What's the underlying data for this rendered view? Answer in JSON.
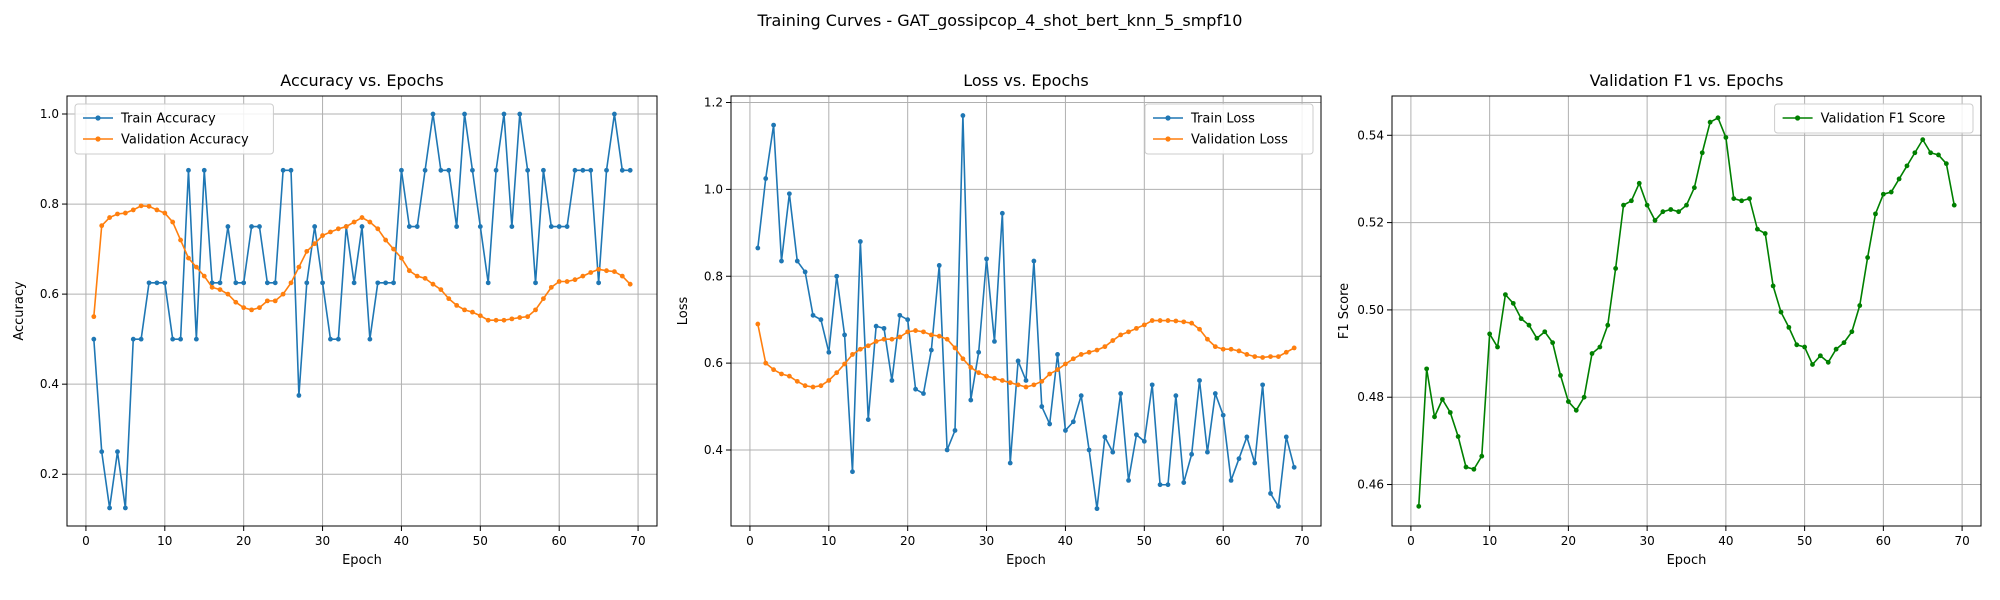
{
  "figure": {
    "suptitle": "Training Curves - GAT_gossipcop_4_shot_bert_knn_5_smpf10"
  },
  "chart_data": [
    {
      "type": "line",
      "title": "Accuracy vs. Epochs",
      "xlabel": "Epoch",
      "ylabel": "Accuracy",
      "xlim": [
        -2.4,
        72.4
      ],
      "ylim": [
        0.085,
        1.04
      ],
      "xticks": [
        0,
        10,
        20,
        30,
        40,
        50,
        60,
        70
      ],
      "yticks": [
        0.2,
        0.4,
        0.6,
        0.8,
        1.0
      ],
      "ytick_format": 1,
      "grid": true,
      "legend": "upper-left",
      "series": [
        {
          "name": "Train Accuracy",
          "color": "#1f77b4",
          "x": [
            1,
            2,
            3,
            4,
            5,
            6,
            7,
            8,
            9,
            10,
            11,
            12,
            13,
            14,
            15,
            16,
            17,
            18,
            19,
            20,
            21,
            22,
            23,
            24,
            25,
            26,
            27,
            28,
            29,
            30,
            31,
            32,
            33,
            34,
            35,
            36,
            37,
            38,
            39,
            40,
            41,
            42,
            43,
            44,
            45,
            46,
            47,
            48,
            49,
            50,
            51,
            52,
            53,
            54,
            55,
            56,
            57,
            58,
            59,
            60,
            61,
            62,
            63,
            64,
            65,
            66,
            67,
            68,
            69
          ],
          "values": [
            0.5,
            0.25,
            0.125,
            0.25,
            0.125,
            0.5,
            0.5,
            0.625,
            0.625,
            0.625,
            0.5,
            0.5,
            0.875,
            0.5,
            0.875,
            0.625,
            0.625,
            0.75,
            0.625,
            0.625,
            0.75,
            0.75,
            0.625,
            0.625,
            0.875,
            0.875,
            0.375,
            0.625,
            0.75,
            0.625,
            0.5,
            0.5,
            0.75,
            0.625,
            0.75,
            0.5,
            0.625,
            0.625,
            0.625,
            0.875,
            0.75,
            0.75,
            0.875,
            1.0,
            0.875,
            0.875,
            0.75,
            1.0,
            0.875,
            0.75,
            0.625,
            0.875,
            1.0,
            0.75,
            1.0,
            0.875,
            0.625,
            0.875,
            0.75,
            0.75,
            0.75,
            0.875,
            0.875,
            0.875,
            0.625,
            0.875,
            1.0,
            0.875,
            0.875
          ]
        },
        {
          "name": "Validation Accuracy",
          "color": "#ff7f0e",
          "x": [
            1,
            2,
            3,
            4,
            5,
            6,
            7,
            8,
            9,
            10,
            11,
            12,
            13,
            14,
            15,
            16,
            17,
            18,
            19,
            20,
            21,
            22,
            23,
            24,
            25,
            26,
            27,
            28,
            29,
            30,
            31,
            32,
            33,
            34,
            35,
            36,
            37,
            38,
            39,
            40,
            41,
            42,
            43,
            44,
            45,
            46,
            47,
            48,
            49,
            50,
            51,
            52,
            53,
            54,
            55,
            56,
            57,
            58,
            59,
            60,
            61,
            62,
            63,
            64,
            65,
            66,
            67,
            68,
            69
          ],
          "values": [
            0.55,
            0.752,
            0.77,
            0.778,
            0.78,
            0.787,
            0.796,
            0.795,
            0.787,
            0.78,
            0.76,
            0.72,
            0.68,
            0.66,
            0.64,
            0.615,
            0.61,
            0.6,
            0.582,
            0.57,
            0.565,
            0.57,
            0.585,
            0.585,
            0.6,
            0.625,
            0.66,
            0.695,
            0.712,
            0.73,
            0.738,
            0.745,
            0.75,
            0.76,
            0.77,
            0.76,
            0.745,
            0.72,
            0.7,
            0.68,
            0.652,
            0.64,
            0.635,
            0.622,
            0.61,
            0.59,
            0.575,
            0.565,
            0.56,
            0.552,
            0.542,
            0.542,
            0.542,
            0.545,
            0.548,
            0.55,
            0.565,
            0.59,
            0.615,
            0.628,
            0.628,
            0.632,
            0.64,
            0.648,
            0.655,
            0.652,
            0.65,
            0.64,
            0.622
          ]
        }
      ]
    },
    {
      "type": "line",
      "title": "Loss vs. Epochs",
      "xlabel": "Epoch",
      "ylabel": "Loss",
      "xlim": [
        -2.4,
        72.4
      ],
      "ylim": [
        0.225,
        1.215
      ],
      "xticks": [
        0,
        10,
        20,
        30,
        40,
        50,
        60,
        70
      ],
      "yticks": [
        0.4,
        0.6,
        0.8,
        1.0,
        1.2
      ],
      "ytick_format": 1,
      "grid": true,
      "legend": "upper-right",
      "series": [
        {
          "name": "Train Loss",
          "color": "#1f77b4",
          "x": [
            1,
            2,
            3,
            4,
            5,
            6,
            7,
            8,
            9,
            10,
            11,
            12,
            13,
            14,
            15,
            16,
            17,
            18,
            19,
            20,
            21,
            22,
            23,
            24,
            25,
            26,
            27,
            28,
            29,
            30,
            31,
            32,
            33,
            34,
            35,
            36,
            37,
            38,
            39,
            40,
            41,
            42,
            43,
            44,
            45,
            46,
            47,
            48,
            49,
            50,
            51,
            52,
            53,
            54,
            55,
            56,
            57,
            58,
            59,
            60,
            61,
            62,
            63,
            64,
            65,
            66,
            67,
            68,
            69
          ],
          "values": [
            0.865,
            1.025,
            1.148,
            0.835,
            0.99,
            0.835,
            0.81,
            0.71,
            0.7,
            0.625,
            0.8,
            0.665,
            0.35,
            0.88,
            0.47,
            0.685,
            0.68,
            0.56,
            0.71,
            0.7,
            0.54,
            0.53,
            0.63,
            0.825,
            0.4,
            0.445,
            1.17,
            0.515,
            0.625,
            0.84,
            0.65,
            0.945,
            0.37,
            0.605,
            0.56,
            0.835,
            0.5,
            0.46,
            0.62,
            0.445,
            0.465,
            0.525,
            0.4,
            0.265,
            0.43,
            0.395,
            0.53,
            0.33,
            0.435,
            0.42,
            0.55,
            0.32,
            0.32,
            0.525,
            0.325,
            0.39,
            0.56,
            0.395,
            0.53,
            0.48,
            0.33,
            0.38,
            0.43,
            0.37,
            0.55,
            0.3,
            0.27,
            0.43,
            0.36
          ]
        },
        {
          "name": "Validation Loss",
          "color": "#ff7f0e",
          "x": [
            1,
            2,
            3,
            4,
            5,
            6,
            7,
            8,
            9,
            10,
            11,
            12,
            13,
            14,
            15,
            16,
            17,
            18,
            19,
            20,
            21,
            22,
            23,
            24,
            25,
            26,
            27,
            28,
            29,
            30,
            31,
            32,
            33,
            34,
            35,
            36,
            37,
            38,
            39,
            40,
            41,
            42,
            43,
            44,
            45,
            46,
            47,
            48,
            49,
            50,
            51,
            52,
            53,
            54,
            55,
            56,
            57,
            58,
            59,
            60,
            61,
            62,
            63,
            64,
            65,
            66,
            67,
            68,
            69
          ],
          "values": [
            0.69,
            0.6,
            0.585,
            0.575,
            0.57,
            0.558,
            0.548,
            0.545,
            0.548,
            0.56,
            0.578,
            0.598,
            0.62,
            0.632,
            0.64,
            0.65,
            0.655,
            0.655,
            0.66,
            0.672,
            0.675,
            0.672,
            0.665,
            0.662,
            0.655,
            0.635,
            0.61,
            0.59,
            0.578,
            0.57,
            0.565,
            0.56,
            0.555,
            0.55,
            0.545,
            0.55,
            0.558,
            0.575,
            0.585,
            0.598,
            0.61,
            0.62,
            0.625,
            0.63,
            0.638,
            0.652,
            0.665,
            0.672,
            0.68,
            0.688,
            0.698,
            0.698,
            0.698,
            0.697,
            0.695,
            0.692,
            0.678,
            0.655,
            0.638,
            0.632,
            0.632,
            0.628,
            0.62,
            0.615,
            0.613,
            0.615,
            0.615,
            0.625,
            0.635
          ]
        }
      ]
    },
    {
      "type": "line",
      "title": "Validation F1 vs. Epochs",
      "xlabel": "Epoch",
      "ylabel": "F1 Score",
      "xlim": [
        -2.4,
        72.4
      ],
      "ylim": [
        0.4505,
        0.549
      ],
      "xticks": [
        0,
        10,
        20,
        30,
        40,
        50,
        60,
        70
      ],
      "yticks": [
        0.46,
        0.48,
        0.5,
        0.52,
        0.54
      ],
      "ytick_format": 2,
      "grid": true,
      "legend": "upper-right",
      "series": [
        {
          "name": "Validation F1 Score",
          "color": "#008000",
          "x": [
            1,
            2,
            3,
            4,
            5,
            6,
            7,
            8,
            9,
            10,
            11,
            12,
            13,
            14,
            15,
            16,
            17,
            18,
            19,
            20,
            21,
            22,
            23,
            24,
            25,
            26,
            27,
            28,
            29,
            30,
            31,
            32,
            33,
            34,
            35,
            36,
            37,
            38,
            39,
            40,
            41,
            42,
            43,
            44,
            45,
            46,
            47,
            48,
            49,
            50,
            51,
            52,
            53,
            54,
            55,
            56,
            57,
            58,
            59,
            60,
            61,
            62,
            63,
            64,
            65,
            66,
            67,
            68,
            69
          ],
          "values": [
            0.455,
            0.4865,
            0.4755,
            0.4795,
            0.4765,
            0.471,
            0.464,
            0.4635,
            0.4665,
            0.4945,
            0.4915,
            0.5035,
            0.5015,
            0.498,
            0.4965,
            0.4935,
            0.495,
            0.4925,
            0.485,
            0.479,
            0.477,
            0.48,
            0.49,
            0.4915,
            0.4965,
            0.5095,
            0.524,
            0.525,
            0.529,
            0.524,
            0.5205,
            0.5225,
            0.523,
            0.5225,
            0.524,
            0.528,
            0.536,
            0.543,
            0.544,
            0.5395,
            0.5255,
            0.525,
            0.5255,
            0.5185,
            0.5175,
            0.5055,
            0.4995,
            0.496,
            0.492,
            0.4915,
            0.4875,
            0.4895,
            0.488,
            0.491,
            0.4925,
            0.495,
            0.501,
            0.512,
            0.522,
            0.5265,
            0.527,
            0.53,
            0.533,
            0.536,
            0.539,
            0.536,
            0.5355,
            0.5335,
            0.524
          ]
        }
      ]
    }
  ]
}
